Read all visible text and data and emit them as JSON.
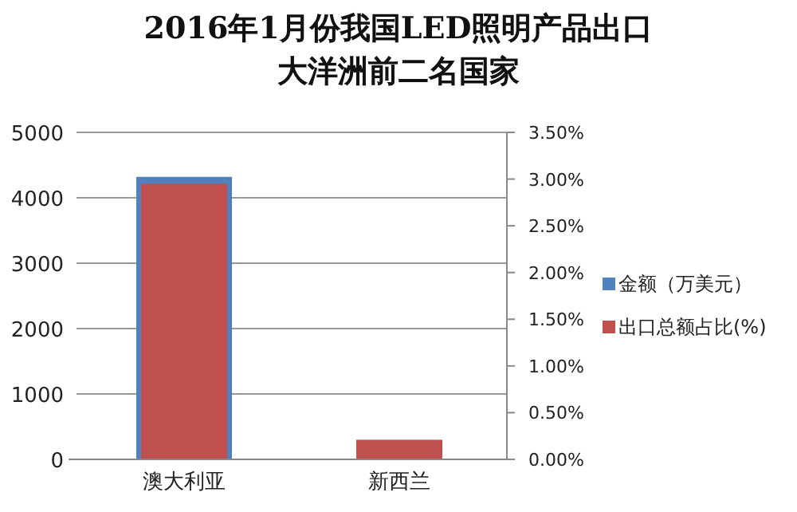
{
  "chart_data": {
    "type": "bar",
    "title": "2016年1月份我国LED照明产品出口大洋洲前二名国家",
    "categories": [
      "澳大利亚",
      "新西兰"
    ],
    "series": [
      {
        "name": "金额（万美元）",
        "color": "#4f81bd",
        "values": [
          4320,
          null
        ]
      },
      {
        "name": "出口总额占比(%)",
        "color": "#c0504d",
        "values": [
          2.95,
          0.21
        ],
        "axis": "y2"
      }
    ],
    "ylim": [
      0,
      5000
    ],
    "yticks": [
      0,
      1000,
      2000,
      3000,
      4000,
      5000
    ],
    "y2lim": [
      0,
      3.5
    ],
    "y2ticks": [
      {
        "value": 0,
        "label": "0.00%"
      },
      {
        "value": 0.5,
        "label": "0.50%"
      },
      {
        "value": 1,
        "label": "1.00%"
      },
      {
        "value": 1.5,
        "label": "1.50%"
      },
      {
        "value": 2,
        "label": "2.00%"
      },
      {
        "value": 2.5,
        "label": "2.50%"
      },
      {
        "value": 3,
        "label": "3.00%"
      },
      {
        "value": 3.5,
        "label": "3.50%"
      }
    ],
    "grid": "y",
    "legend": "right"
  }
}
